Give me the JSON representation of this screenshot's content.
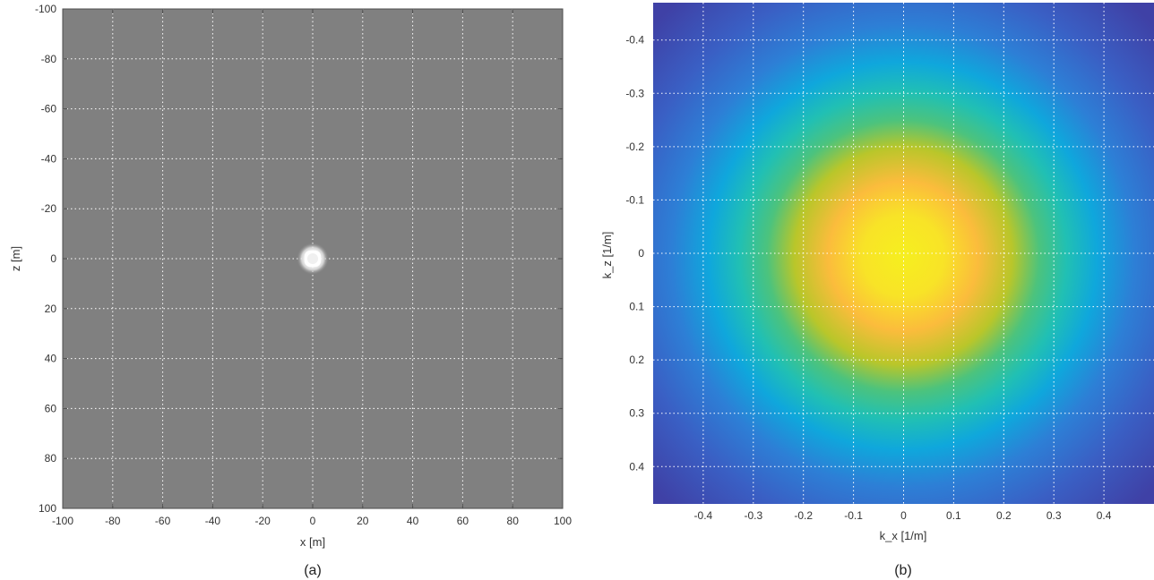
{
  "panels": [
    {
      "caption": "(a)"
    },
    {
      "caption": "(b)"
    }
  ],
  "chart_data": [
    {
      "type": "heatmap",
      "title": "",
      "xlabel": "x [m]",
      "ylabel": "z [m]",
      "xlim": [
        -100,
        100
      ],
      "ylim": [
        -100,
        100
      ],
      "y_direction": "reversed",
      "xticks": [
        -100,
        -80,
        -60,
        -40,
        -20,
        0,
        20,
        40,
        60,
        80,
        100
      ],
      "yticks": [
        -100,
        -80,
        -60,
        -40,
        -20,
        0,
        20,
        40,
        60,
        80,
        100
      ],
      "grid": true,
      "colormap": "gray",
      "background_color": "#808080",
      "feature": {
        "description": "bright white spot",
        "x": 0,
        "z": 0
      }
    },
    {
      "type": "heatmap",
      "title": "",
      "xlabel": "k_x [1/m]",
      "ylabel": "k_z [1/m]",
      "xlim": [
        -0.5,
        0.5
      ],
      "ylim": [
        -0.47,
        0.47
      ],
      "y_direction": "reversed",
      "xticks": [
        -0.4,
        -0.3,
        -0.2,
        -0.1,
        0,
        0.1,
        0.2,
        0.3,
        0.4
      ],
      "yticks": [
        -0.4,
        -0.3,
        -0.2,
        -0.1,
        0,
        0.1,
        0.2,
        0.3,
        0.4
      ],
      "grid": true,
      "colormap": "parula",
      "peak": {
        "kx": 0.0,
        "kz": 0.0
      }
    }
  ]
}
